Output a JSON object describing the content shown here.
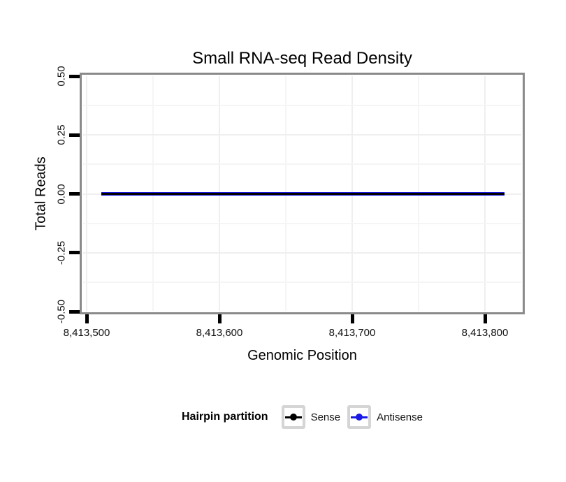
{
  "title": "Small RNA-seq Read Density",
  "axes": {
    "x": {
      "label": "Genomic Position",
      "ticks": [
        "8,413,500",
        "8,413,600",
        "8,413,700",
        "8,413,800"
      ]
    },
    "y": {
      "label": "Total Reads",
      "ticks": [
        "0.50",
        "0.25",
        "0.00",
        "-0.25",
        "-0.50"
      ]
    }
  },
  "legend": {
    "title": "Hairpin partition",
    "items": [
      {
        "label": "Sense",
        "color": "#000000"
      },
      {
        "label": "Antisense",
        "color": "#1a1ae6"
      }
    ]
  },
  "panel": {
    "background": "#ffffff",
    "border_color": "#8a8a8a"
  },
  "grid": {
    "major": "#efefef",
    "minor": "#f5f5f5"
  },
  "chart_data": {
    "type": "line",
    "title": "Small RNA-seq Read Density",
    "xlabel": "Genomic Position",
    "ylabel": "Total Reads",
    "xlim": [
      8413496,
      8413829
    ],
    "ylim": [
      -0.505,
      0.505
    ],
    "x_ticks": [
      8413500,
      8413600,
      8413700,
      8413800
    ],
    "y_ticks": [
      0.5,
      0.25,
      0.0,
      -0.25,
      -0.5
    ],
    "x_minor_ticks": [
      8413550,
      8413650,
      8413750
    ],
    "y_minor_ticks": [
      0.375,
      0.125,
      -0.125,
      -0.375
    ],
    "grid": true,
    "legend_title": "Hairpin partition",
    "legend_position": "bottom",
    "series": [
      {
        "name": "Sense",
        "color": "#000000",
        "x": [
          8413511,
          8413815
        ],
        "y": [
          0,
          0
        ]
      },
      {
        "name": "Antisense",
        "color": "#1a1ae6",
        "x": [
          8413511,
          8413815
        ],
        "y": [
          0,
          0
        ]
      }
    ]
  }
}
